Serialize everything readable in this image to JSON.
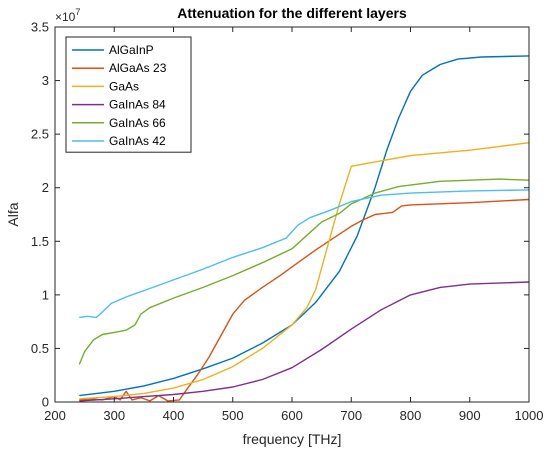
{
  "chart_data": {
    "type": "line",
    "title": "Attenuation for the different layers",
    "xlabel": "frequency [THz]",
    "ylabel": "Alfa",
    "y_exponent_label": "×10",
    "y_exponent_power": "7",
    "xlim": [
      200,
      1000
    ],
    "ylim": [
      0,
      3.5
    ],
    "x_ticks": [
      200,
      300,
      400,
      500,
      600,
      700,
      800,
      900,
      1000
    ],
    "x_tick_labels": [
      "200",
      "300",
      "400",
      "500",
      "600",
      "700",
      "800",
      "900",
      "1000"
    ],
    "y_ticks": [
      0,
      0.5,
      1,
      1.5,
      2,
      2.5,
      3,
      3.5
    ],
    "y_tick_labels": [
      "0",
      "0.5",
      "1",
      "1.5",
      "2",
      "2.5",
      "3",
      "3.5"
    ],
    "legend_position": "top-left",
    "grid": false,
    "series": [
      {
        "name": "AlGaInP",
        "color": "#0072BD",
        "points": [
          [
            241,
            0.06
          ],
          [
            300,
            0.1
          ],
          [
            350,
            0.15
          ],
          [
            400,
            0.22
          ],
          [
            450,
            0.31
          ],
          [
            500,
            0.41
          ],
          [
            550,
            0.55
          ],
          [
            600,
            0.72
          ],
          [
            640,
            0.93
          ],
          [
            680,
            1.22
          ],
          [
            710,
            1.55
          ],
          [
            740,
            2.0
          ],
          [
            760,
            2.35
          ],
          [
            780,
            2.65
          ],
          [
            800,
            2.9
          ],
          [
            820,
            3.05
          ],
          [
            850,
            3.15
          ],
          [
            880,
            3.2
          ],
          [
            920,
            3.22
          ],
          [
            1000,
            3.23
          ]
        ]
      },
      {
        "name": "AlGaAs 23",
        "color": "#D95319",
        "points": [
          [
            241,
            0.02
          ],
          [
            260,
            0.03
          ],
          [
            280,
            0.02
          ],
          [
            300,
            0.05
          ],
          [
            310,
            0.02
          ],
          [
            320,
            0.1
          ],
          [
            330,
            0.02
          ],
          [
            345,
            0.04
          ],
          [
            360,
            0.01
          ],
          [
            375,
            0.06
          ],
          [
            390,
            0.01
          ],
          [
            410,
            0.02
          ],
          [
            420,
            0.1
          ],
          [
            440,
            0.25
          ],
          [
            460,
            0.42
          ],
          [
            480,
            0.62
          ],
          [
            500,
            0.82
          ],
          [
            520,
            0.95
          ],
          [
            550,
            1.07
          ],
          [
            580,
            1.18
          ],
          [
            610,
            1.3
          ],
          [
            640,
            1.42
          ],
          [
            670,
            1.53
          ],
          [
            700,
            1.64
          ],
          [
            720,
            1.7
          ],
          [
            740,
            1.75
          ],
          [
            770,
            1.77
          ],
          [
            785,
            1.83
          ],
          [
            800,
            1.84
          ],
          [
            900,
            1.86
          ],
          [
            1000,
            1.89
          ]
        ]
      },
      {
        "name": "GaAs",
        "color": "#EDB120",
        "points": [
          [
            241,
            0.03
          ],
          [
            300,
            0.05
          ],
          [
            350,
            0.08
          ],
          [
            400,
            0.13
          ],
          [
            450,
            0.21
          ],
          [
            500,
            0.33
          ],
          [
            550,
            0.5
          ],
          [
            600,
            0.72
          ],
          [
            625,
            0.88
          ],
          [
            640,
            1.05
          ],
          [
            660,
            1.45
          ],
          [
            680,
            1.85
          ],
          [
            700,
            2.2
          ],
          [
            720,
            2.22
          ],
          [
            800,
            2.3
          ],
          [
            900,
            2.35
          ],
          [
            1000,
            2.42
          ]
        ]
      },
      {
        "name": "GaInAs 84",
        "color": "#7E2F8E",
        "points": [
          [
            241,
            0.01
          ],
          [
            300,
            0.03
          ],
          [
            350,
            0.05
          ],
          [
            400,
            0.07
          ],
          [
            450,
            0.1
          ],
          [
            500,
            0.14
          ],
          [
            550,
            0.21
          ],
          [
            600,
            0.32
          ],
          [
            650,
            0.49
          ],
          [
            700,
            0.68
          ],
          [
            750,
            0.86
          ],
          [
            800,
            1.0
          ],
          [
            850,
            1.07
          ],
          [
            900,
            1.1
          ],
          [
            1000,
            1.12
          ]
        ]
      },
      {
        "name": "GaInAs 66",
        "color": "#77AC30",
        "points": [
          [
            241,
            0.35
          ],
          [
            250,
            0.47
          ],
          [
            265,
            0.58
          ],
          [
            280,
            0.63
          ],
          [
            300,
            0.65
          ],
          [
            320,
            0.67
          ],
          [
            335,
            0.72
          ],
          [
            345,
            0.82
          ],
          [
            360,
            0.88
          ],
          [
            400,
            0.97
          ],
          [
            450,
            1.07
          ],
          [
            500,
            1.18
          ],
          [
            550,
            1.3
          ],
          [
            600,
            1.43
          ],
          [
            630,
            1.58
          ],
          [
            650,
            1.68
          ],
          [
            680,
            1.76
          ],
          [
            700,
            1.85
          ],
          [
            740,
            1.95
          ],
          [
            780,
            2.01
          ],
          [
            850,
            2.06
          ],
          [
            900,
            2.07
          ],
          [
            950,
            2.08
          ],
          [
            1000,
            2.07
          ]
        ]
      },
      {
        "name": "GaInAs 42",
        "color": "#4DBEEE",
        "points": [
          [
            241,
            0.79
          ],
          [
            255,
            0.8
          ],
          [
            270,
            0.79
          ],
          [
            280,
            0.84
          ],
          [
            295,
            0.92
          ],
          [
            320,
            0.98
          ],
          [
            350,
            1.04
          ],
          [
            400,
            1.14
          ],
          [
            450,
            1.24
          ],
          [
            500,
            1.35
          ],
          [
            550,
            1.44
          ],
          [
            590,
            1.53
          ],
          [
            610,
            1.65
          ],
          [
            630,
            1.72
          ],
          [
            660,
            1.78
          ],
          [
            700,
            1.87
          ],
          [
            750,
            1.93
          ],
          [
            800,
            1.95
          ],
          [
            900,
            1.97
          ],
          [
            1000,
            1.98
          ]
        ]
      }
    ]
  }
}
